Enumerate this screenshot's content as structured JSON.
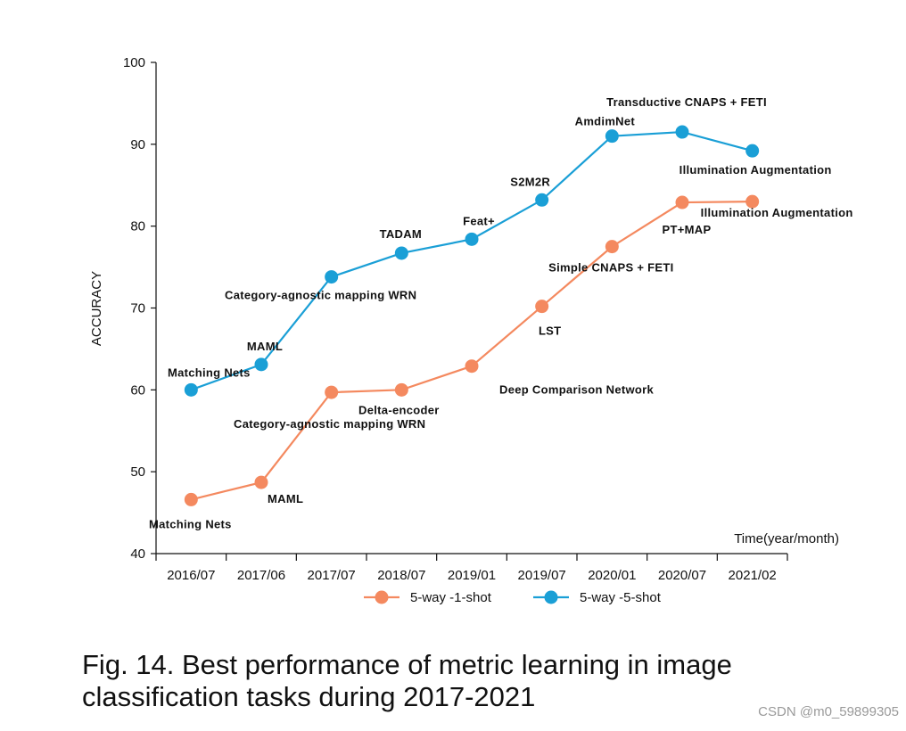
{
  "chart_data": {
    "type": "line",
    "title": "",
    "xlabel": "Time(year/month)",
    "ylabel": "ACCURACY",
    "ylim": [
      40,
      100
    ],
    "yticks": [
      40,
      50,
      60,
      70,
      80,
      90,
      100
    ],
    "categories": [
      "2016/07",
      "2017/06",
      "2017/07",
      "2018/07",
      "2019/01",
      "2019/07",
      "2020/01",
      "2020/07",
      "2021/02"
    ],
    "legend": "bottom-center",
    "series": [
      {
        "name": "5-way -1-shot",
        "color": "#f4895f",
        "values": [
          46.6,
          48.7,
          59.7,
          60.0,
          62.9,
          70.2,
          77.5,
          82.9,
          83.0
        ],
        "annotations": [
          "Matching Nets",
          "MAML",
          "Category-agnostic mapping WRN",
          "Delta-encoder",
          "Deep Comparison Network",
          "LST",
          "Simple CNAPS + FETI",
          "PT+MAP",
          "Illumination Augmentation"
        ]
      },
      {
        "name": "5-way -5-shot",
        "color": "#1a9fd6",
        "values": [
          60.0,
          63.1,
          73.8,
          76.7,
          78.4,
          83.2,
          91.0,
          91.5,
          89.2
        ],
        "annotations": [
          "Matching Nets",
          "MAML",
          "Category-agnostic mapping WRN",
          "TADAM",
          "Feat+",
          "S2M2R",
          "AmdimNet",
          "Transductive CNAPS + FETI",
          "Illumination Augmentation"
        ]
      }
    ]
  },
  "caption": "Fig. 14. Best performance of metric learning in image classification tasks during 2017-2021",
  "watermark": "CSDN @m0_59899305"
}
